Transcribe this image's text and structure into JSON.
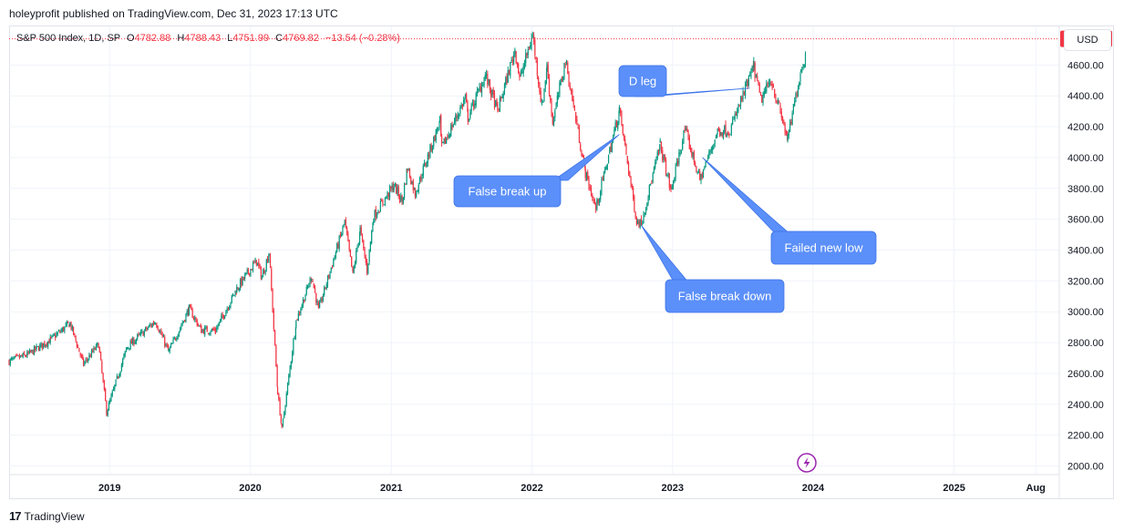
{
  "publisher": "holeyprofit published on TradingView.com, Dec 31, 2023 17:13 UTC",
  "legend": {
    "symbol": "S&P 500 Index, 1D, SP",
    "open_label": "O",
    "open": "4782.88",
    "high_label": "H",
    "high": "4788.43",
    "low_label": "L",
    "low": "4751.99",
    "close_label": "C",
    "close": "4769.82",
    "change": "−13.54 (−0.28%)"
  },
  "currency_button": "USD",
  "footer": {
    "brand": "TradingView",
    "logo_mark": "17"
  },
  "colors": {
    "up": "#089981",
    "down": "#f23645",
    "callout": "#5b8ff9",
    "grid": "#f0f3fa",
    "last_price": "#f23645"
  },
  "icons": {
    "flash": "lightning-icon"
  },
  "chart_data": {
    "type": "candlestick",
    "title": "S&P 500 Index, 1D, SP",
    "ylim": [
      1950,
      4850
    ],
    "y_ticks": [
      2000,
      2200,
      2400,
      2600,
      2800,
      3000,
      3200,
      3400,
      3600,
      3800,
      4000,
      4200,
      4400,
      4600
    ],
    "y_tick_labels": [
      "2000.00",
      "2200.00",
      "2400.00",
      "2600.00",
      "2800.00",
      "3000.00",
      "3200.00",
      "3400.00",
      "3600.00",
      "3800.00",
      "4000.00",
      "4200.00",
      "4400.00",
      "4600.00"
    ],
    "x_ticks": [
      {
        "label": "2019",
        "date": "2019-01-01"
      },
      {
        "label": "2020",
        "date": "2020-01-01"
      },
      {
        "label": "2021",
        "date": "2021-01-01"
      },
      {
        "label": "2022",
        "date": "2022-01-01"
      },
      {
        "label": "2023",
        "date": "2023-01-01"
      },
      {
        "label": "2024",
        "date": "2024-01-01"
      },
      {
        "label": "2025",
        "date": "2025-01-01"
      },
      {
        "label": "Aug",
        "date": "2025-08-01"
      }
    ],
    "x_start": "2018-04-15",
    "x_end": "2025-10-01",
    "last_price": 4769.82,
    "last_price_label": "4769.82",
    "series": [
      {
        "values": [
          [
            "2018-04-15",
            2680
          ],
          [
            "2018-06-01",
            2720
          ],
          [
            "2018-08-01",
            2820
          ],
          [
            "2018-09-20",
            2925
          ],
          [
            "2018-10-25",
            2660
          ],
          [
            "2018-12-03",
            2790
          ],
          [
            "2018-12-24",
            2350
          ],
          [
            "2019-02-15",
            2770
          ],
          [
            "2019-04-30",
            2940
          ],
          [
            "2019-06-03",
            2740
          ],
          [
            "2019-07-26",
            3020
          ],
          [
            "2019-08-27",
            2880
          ],
          [
            "2019-10-03",
            2880
          ],
          [
            "2019-11-27",
            3150
          ],
          [
            "2020-01-17",
            3330
          ],
          [
            "2020-01-31",
            3225
          ],
          [
            "2020-02-19",
            3386
          ],
          [
            "2020-03-12",
            2480
          ],
          [
            "2020-03-23",
            2237
          ],
          [
            "2020-04-29",
            2940
          ],
          [
            "2020-06-08",
            3230
          ],
          [
            "2020-06-26",
            3010
          ],
          [
            "2020-09-02",
            3580
          ],
          [
            "2020-09-23",
            3240
          ],
          [
            "2020-10-12",
            3530
          ],
          [
            "2020-10-30",
            3270
          ],
          [
            "2020-11-16",
            3620
          ],
          [
            "2021-01-08",
            3820
          ],
          [
            "2021-01-29",
            3715
          ],
          [
            "2021-02-12",
            3935
          ],
          [
            "2021-03-04",
            3770
          ],
          [
            "2021-05-07",
            4230
          ],
          [
            "2021-05-12",
            4060
          ],
          [
            "2021-07-12",
            4385
          ],
          [
            "2021-07-19",
            4260
          ],
          [
            "2021-09-02",
            4535
          ],
          [
            "2021-10-04",
            4300
          ],
          [
            "2021-11-18",
            4700
          ],
          [
            "2021-12-01",
            4510
          ],
          [
            "2022-01-03",
            4796
          ],
          [
            "2022-01-27",
            4326
          ],
          [
            "2022-02-09",
            4590
          ],
          [
            "2022-02-24",
            4225
          ],
          [
            "2022-03-29",
            4630
          ],
          [
            "2022-05-20",
            3900
          ],
          [
            "2022-06-16",
            3666
          ],
          [
            "2022-08-16",
            4305
          ],
          [
            "2022-09-30",
            3585
          ],
          [
            "2022-10-12",
            3577
          ],
          [
            "2022-11-30",
            4080
          ],
          [
            "2022-12-28",
            3783
          ],
          [
            "2023-02-02",
            4180
          ],
          [
            "2023-03-13",
            3855
          ],
          [
            "2023-04-28",
            4170
          ],
          [
            "2023-05-31",
            4180
          ],
          [
            "2023-07-31",
            4588
          ],
          [
            "2023-08-18",
            4370
          ],
          [
            "2023-09-14",
            4505
          ],
          [
            "2023-10-27",
            4117
          ],
          [
            "2023-11-30",
            4568
          ],
          [
            "2023-12-28",
            4783
          ]
        ]
      }
    ],
    "annotations": [
      {
        "text": "D leg",
        "target": [
          "2023-07-21",
          4450
        ]
      },
      {
        "text": "False break up",
        "target": [
          "2022-08-16",
          4150
        ]
      },
      {
        "text": "Failed new low",
        "target": [
          "2023-03-20",
          4000
        ]
      },
      {
        "text": "False break down",
        "target": [
          "2022-10-12",
          3560
        ]
      }
    ]
  }
}
